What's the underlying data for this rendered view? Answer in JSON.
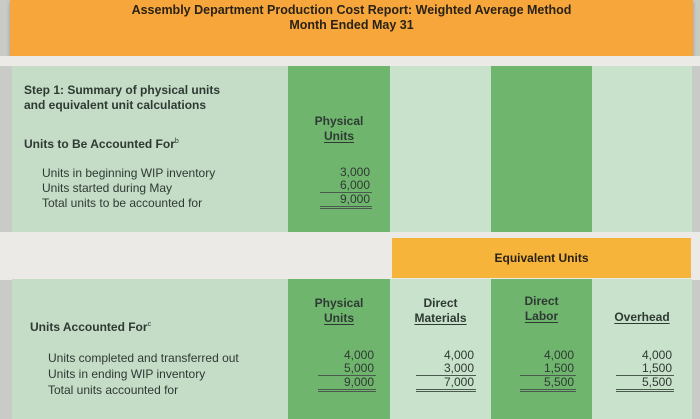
{
  "header": {
    "title": "Assembly Department Production Cost Report: Weighted Average Method",
    "subtitle": "Month Ended May 31"
  },
  "step1": {
    "title_line1": "Step 1: Summary of physical units",
    "title_line2": "and equivalent unit calculations",
    "units_to_account_label": "Units to Be Accounted For",
    "units_to_account_sup": "b",
    "col_header_line1": "Physical",
    "col_header_line2": "Units",
    "rows": [
      {
        "label": "Units in beginning WIP inventory",
        "value": "3,000"
      },
      {
        "label": "Units started during May",
        "value": "6,000"
      },
      {
        "label": "Total units to be accounted for",
        "value": "9,000"
      }
    ]
  },
  "equivalent_units_label": "Equivalent Units",
  "section2": {
    "units_accounted_label": "Units Accounted For",
    "units_accounted_sup": "c",
    "headers": [
      {
        "line1": "Physical",
        "line2": "Units"
      },
      {
        "line1": "Direct",
        "line2": "Materials"
      },
      {
        "line1": "Direct",
        "line2": "Labor"
      },
      {
        "line1": "Overhead",
        "line2": ""
      }
    ],
    "row_labels": [
      "Units completed and transferred out",
      "Units in ending WIP inventory",
      "Total units accounted for"
    ],
    "columns": [
      [
        "4,000",
        "5,000",
        "9,000"
      ],
      [
        "4,000",
        "3,000",
        "7,000"
      ],
      [
        "4,000",
        "1,500",
        "5,500"
      ],
      [
        "4,000",
        "1,500",
        "5,500"
      ]
    ]
  }
}
